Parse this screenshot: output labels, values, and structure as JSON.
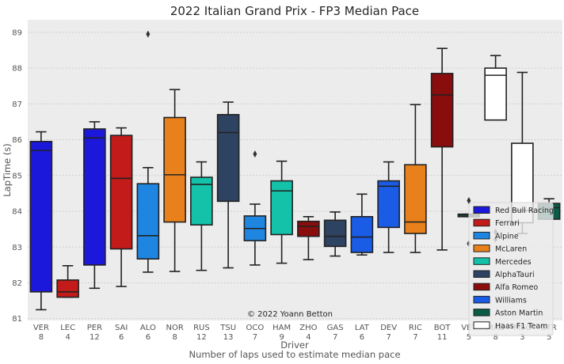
{
  "chart_data": {
    "type": "box",
    "title": "2022 Italian Grand Prix - FP3 Median Pace",
    "ylabel": "LapTime (s)",
    "xlabel": "Driver",
    "xlabel_sub": "Number of laps used to estimate median pace",
    "annotation": "© 2022 Yoann Betton",
    "ylim": [
      80.95,
      89.35
    ],
    "yticks": [
      81,
      82,
      83,
      84,
      85,
      86,
      87,
      88,
      89
    ],
    "grid": true,
    "legend_position": "lower-right",
    "teams": [
      {
        "name": "Red Bull Racing",
        "color": "#1b18dc"
      },
      {
        "name": "Ferrari",
        "color": "#c31a1a"
      },
      {
        "name": "Alpine",
        "color": "#1e86e0"
      },
      {
        "name": "McLaren",
        "color": "#e8811c"
      },
      {
        "name": "Mercedes",
        "color": "#13c2a8"
      },
      {
        "name": "AlphaTauri",
        "color": "#2e4261"
      },
      {
        "name": "Alfa Romeo",
        "color": "#8a0d0d"
      },
      {
        "name": "Williams",
        "color": "#1a5ce6"
      },
      {
        "name": "Aston Martin",
        "color": "#0a5c47"
      },
      {
        "name": "Haas F1 Team",
        "color": "#ffffff"
      }
    ],
    "drivers": [
      {
        "code": "VER",
        "laps": "8",
        "team": 0,
        "whislo": 81.25,
        "q1": 81.75,
        "med": 85.7,
        "q3": 85.95,
        "whishi": 86.22,
        "fliers": []
      },
      {
        "code": "LEC",
        "laps": "4",
        "team": 1,
        "whislo": 81.6,
        "q1": 81.6,
        "med": 81.75,
        "q3": 82.08,
        "whishi": 82.48,
        "fliers": []
      },
      {
        "code": "PER",
        "laps": "12",
        "team": 0,
        "whislo": 81.85,
        "q1": 82.5,
        "med": 86.05,
        "q3": 86.3,
        "whishi": 86.5,
        "fliers": []
      },
      {
        "code": "SAI",
        "laps": "6",
        "team": 1,
        "whislo": 81.9,
        "q1": 82.95,
        "med": 84.92,
        "q3": 86.12,
        "whishi": 86.33,
        "fliers": []
      },
      {
        "code": "ALO",
        "laps": "6",
        "team": 2,
        "whislo": 82.3,
        "q1": 82.67,
        "med": 83.32,
        "q3": 84.77,
        "whishi": 85.22,
        "fliers": [
          88.95
        ]
      },
      {
        "code": "NOR",
        "laps": "8",
        "team": 3,
        "whislo": 82.32,
        "q1": 83.7,
        "med": 85.02,
        "q3": 86.62,
        "whishi": 87.4,
        "fliers": []
      },
      {
        "code": "RUS",
        "laps": "12",
        "team": 4,
        "whislo": 82.35,
        "q1": 83.62,
        "med": 84.75,
        "q3": 84.95,
        "whishi": 85.38,
        "fliers": []
      },
      {
        "code": "TSU",
        "laps": "13",
        "team": 5,
        "whislo": 82.42,
        "q1": 84.28,
        "med": 86.2,
        "q3": 86.7,
        "whishi": 87.05,
        "fliers": []
      },
      {
        "code": "OCO",
        "laps": "7",
        "team": 2,
        "whislo": 82.5,
        "q1": 83.18,
        "med": 83.52,
        "q3": 83.87,
        "whishi": 84.2,
        "fliers": [
          85.6
        ]
      },
      {
        "code": "HAM",
        "laps": "9",
        "team": 4,
        "whislo": 82.55,
        "q1": 83.35,
        "med": 84.57,
        "q3": 84.85,
        "whishi": 85.4,
        "fliers": []
      },
      {
        "code": "ZHO",
        "laps": "4",
        "team": 6,
        "whislo": 82.65,
        "q1": 83.3,
        "med": 83.58,
        "q3": 83.72,
        "whishi": 83.85,
        "fliers": []
      },
      {
        "code": "GAS",
        "laps": "7",
        "team": 5,
        "whislo": 82.75,
        "q1": 83.02,
        "med": 83.3,
        "q3": 83.75,
        "whishi": 83.98,
        "fliers": []
      },
      {
        "code": "LAT",
        "laps": "6",
        "team": 7,
        "whislo": 82.78,
        "q1": 82.85,
        "med": 83.28,
        "q3": 83.85,
        "whishi": 84.48,
        "fliers": []
      },
      {
        "code": "DEV",
        "laps": "7",
        "team": 7,
        "whislo": 82.85,
        "q1": 83.55,
        "med": 84.7,
        "q3": 84.85,
        "whishi": 85.38,
        "fliers": []
      },
      {
        "code": "RIC",
        "laps": "7",
        "team": 3,
        "whislo": 82.85,
        "q1": 83.38,
        "med": 83.7,
        "q3": 85.3,
        "whishi": 86.98,
        "fliers": []
      },
      {
        "code": "BOT",
        "laps": "11",
        "team": 6,
        "whislo": 82.92,
        "q1": 85.8,
        "med": 87.25,
        "q3": 87.85,
        "whishi": 88.55,
        "fliers": []
      },
      {
        "code": "VET",
        "laps": "5",
        "team": 8,
        "whislo": 83.85,
        "q1": 83.85,
        "med": 83.9,
        "q3": 83.92,
        "whishi": 83.92,
        "fliers": [
          84.3,
          83.1
        ]
      },
      {
        "code": "MAG",
        "laps": "8",
        "team": 9,
        "whislo": 86.55,
        "q1": 86.55,
        "med": 87.8,
        "q3": 88.0,
        "whishi": 88.35,
        "fliers": [
          83.42,
          83.22
        ]
      },
      {
        "code": "MSC",
        "laps": "3",
        "team": 9,
        "whislo": 83.38,
        "q1": 83.68,
        "med": 84.02,
        "q3": 85.9,
        "whishi": 87.88,
        "fliers": []
      },
      {
        "code": "STR",
        "laps": "5",
        "team": 8,
        "whislo": 83.78,
        "q1": 83.78,
        "med": 84.1,
        "q3": 84.22,
        "whishi": 84.35,
        "fliers": []
      }
    ]
  }
}
